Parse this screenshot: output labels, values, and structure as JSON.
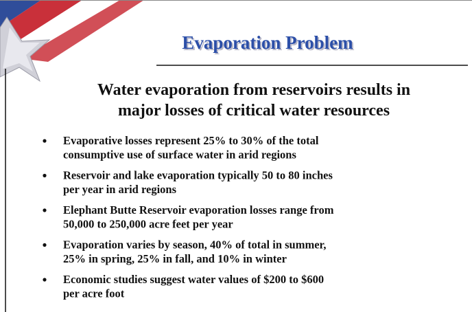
{
  "header": {
    "title": "Evaporation Problem"
  },
  "subtitle": {
    "lines": [
      "Water evaporation from reservoirs results in",
      "major losses of critical water resources"
    ]
  },
  "bullets": [
    {
      "lines": [
        "Evaporative losses represent 25% to 30% of the total",
        "consumptive use of surface water in arid regions"
      ]
    },
    {
      "lines": [
        "Reservoir and lake evaporation typically 50 to 80 inches",
        "per year in arid regions"
      ]
    },
    {
      "lines": [
        "Elephant Butte Reservoir evaporation losses range from",
        "50,000 to 250,000 acre feet per year"
      ]
    },
    {
      "lines": [
        "Evaporation varies by season, 40% of total in summer,",
        "25% in spring, 25% in fall, and 10% in winter"
      ]
    },
    {
      "lines": [
        "Economic studies suggest water values of $200 to $600",
        "per acre foot"
      ]
    }
  ]
}
